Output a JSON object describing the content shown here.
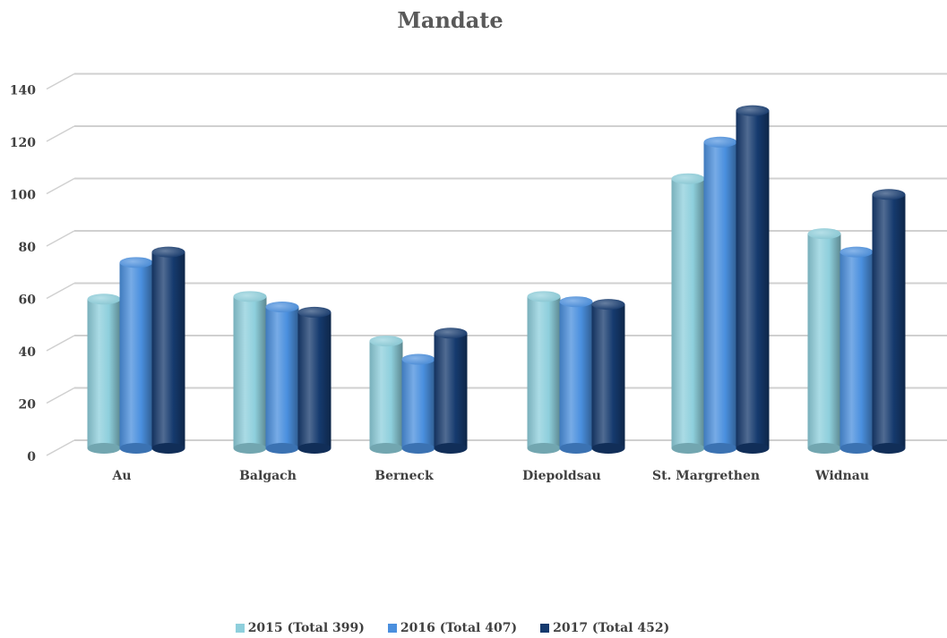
{
  "chart_data": {
    "type": "bar",
    "title": "Mandate",
    "categories": [
      "Au",
      "Balgach",
      "Berneck",
      "Diepoldsau",
      "St. Margrethen",
      "Widnau"
    ],
    "series": [
      {
        "name": "2015 (Total 399)",
        "values": [
          57,
          58,
          41,
          58,
          103,
          82
        ],
        "color": "#8ecfdc"
      },
      {
        "name": "2016 (Total 407)",
        "values": [
          71,
          54,
          34,
          56,
          117,
          75
        ],
        "color": "#4a8fde"
      },
      {
        "name": "2017 (Total 452)",
        "values": [
          75,
          52,
          44,
          55,
          129,
          97
        ],
        "color": "#153a6e"
      }
    ],
    "ylim": [
      0,
      140
    ],
    "yticks": [
      0,
      20,
      40,
      60,
      80,
      100,
      120,
      140
    ],
    "grid": true,
    "legend_position": "bottom",
    "style": "3d-cylinder"
  }
}
